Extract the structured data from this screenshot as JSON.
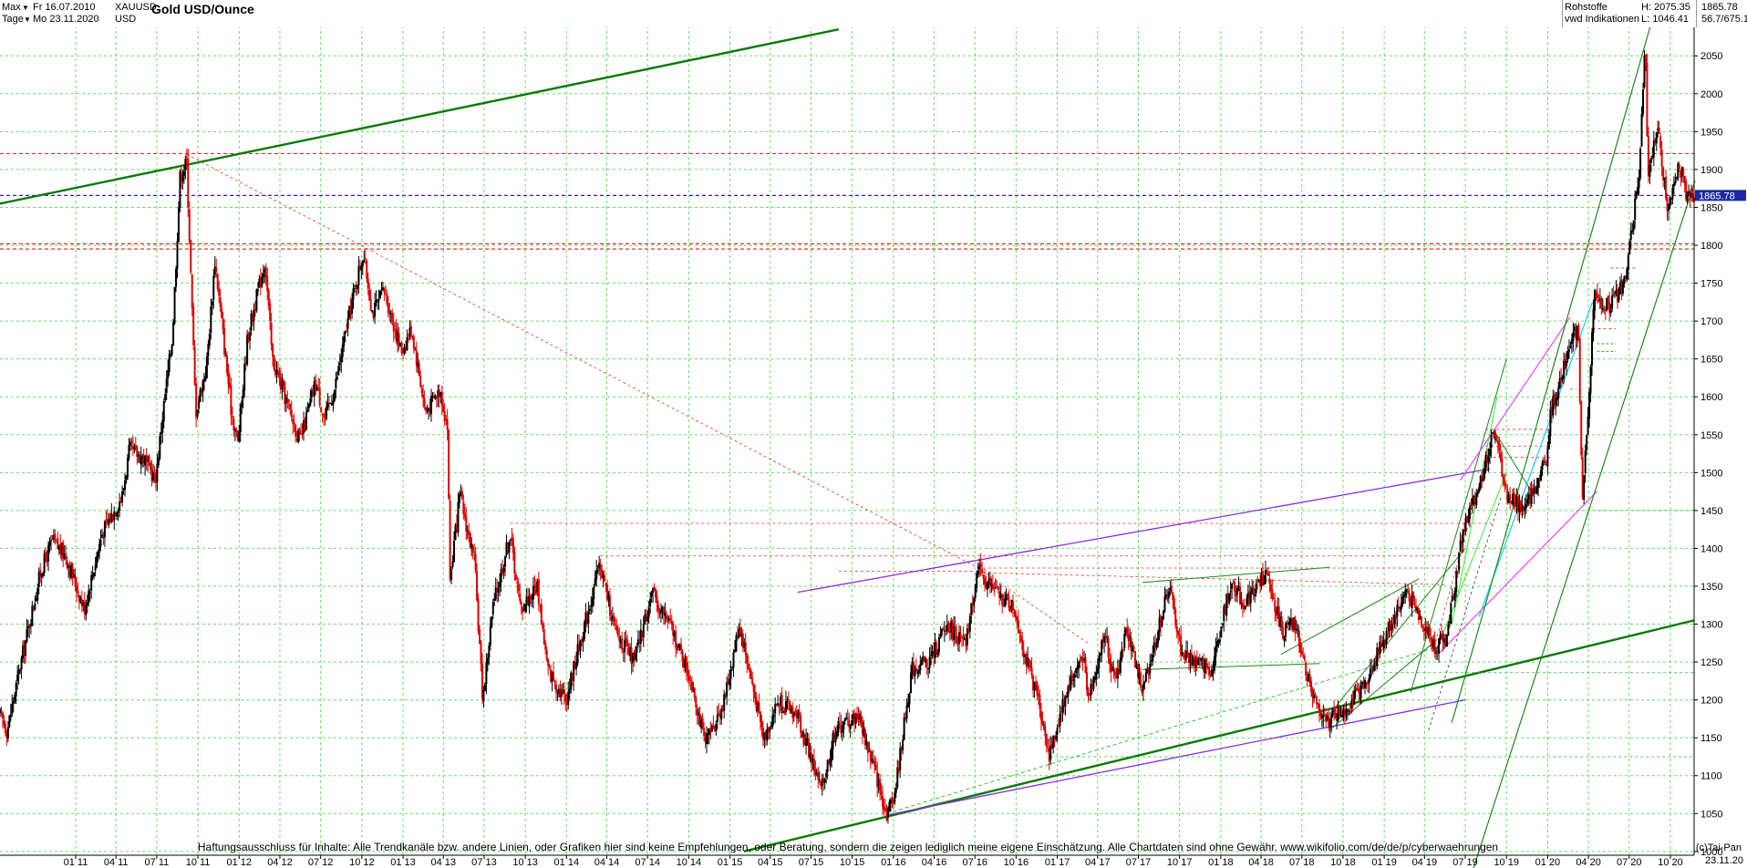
{
  "header": {
    "range_label": "Max",
    "interval_label": "Tage",
    "from_date": "Fr 16.07.2010",
    "to_date": "Mo 23.11.2020",
    "symbol": "XAUUSD",
    "currency": "USD",
    "title": "Gold USD/Ounce",
    "category": "Rohstoffe",
    "source": "vwd Indikationen",
    "high": "H: 2075.35",
    "low": "L: 1046.41",
    "last": "1865.78",
    "change": "56.7/675.1"
  },
  "footer": {
    "disclaimer": "Haftungsausschluss für Inhalte: Alle Trendkanäle bzw. andere Linien, oder Grafiken hier sind keine Empfehlungen, oder Beratung, sondern die zeigen lediglich meine eigene Einschätzung. Alle Chartdaten sind ohne Gewähr.  www.wikifolio.com/de/de/p/cyberwaehrungen",
    "copyright": "(c)Tai-Pan",
    "last_date": "23.11.20"
  },
  "colors": {
    "candle_up": "#000000",
    "candle_down": "#e00000",
    "grid": "#66dd66",
    "trend_green": "#1a8a1a",
    "trend_purple": "#8a2be2",
    "trend_magenta": "#ee44ee",
    "trend_cyan": "#22ccff",
    "level_red": "#e03030",
    "level_blue": "#2222dd",
    "last_badge": "#1a2aa0"
  },
  "chart_data": {
    "type": "candlestick",
    "title": "Gold USD/Ounce",
    "ylim": [
      995,
      2090
    ],
    "y_ticks": [
      1000,
      1050,
      1100,
      1150,
      1200,
      1250,
      1300,
      1350,
      1400,
      1450,
      1500,
      1550,
      1600,
      1650,
      1700,
      1750,
      1800,
      1850,
      1900,
      1950,
      2000,
      2050
    ],
    "x_ticks": [
      "01 11",
      "04 11",
      "07 11",
      "10 11",
      "01 12",
      "04 12",
      "07 12",
      "10 12",
      "01 13",
      "04 13",
      "07 13",
      "10 13",
      "01 14",
      "04 14",
      "07 14",
      "10 14",
      "01 15",
      "04 15",
      "07 15",
      "10 15",
      "01 16",
      "04 16",
      "07 16",
      "10 16",
      "01 17",
      "04 17",
      "07 17",
      "10 17",
      "01 18",
      "04 18",
      "07 18",
      "10 18",
      "01 19",
      "04 19",
      "07 19",
      "10 19",
      "01 20",
      "04 20",
      "07 20",
      "10 20"
    ],
    "x_range": [
      "2010-07-16",
      "2020-11-23"
    ],
    "price_path": [
      [
        "2010-07-16",
        1180
      ],
      [
        "2010-08-01",
        1160
      ],
      [
        "2010-09-01",
        1250
      ],
      [
        "2010-10-15",
        1370
      ],
      [
        "2010-11-10",
        1410
      ],
      [
        "2010-12-10",
        1390
      ],
      [
        "2011-01-20",
        1320
      ],
      [
        "2011-03-01",
        1420
      ],
      [
        "2011-04-15",
        1470
      ],
      [
        "2011-05-01",
        1530
      ],
      [
        "2011-06-01",
        1520
      ],
      [
        "2011-06-28",
        1490
      ],
      [
        "2011-07-15",
        1580
      ],
      [
        "2011-08-05",
        1680
      ],
      [
        "2011-08-22",
        1890
      ],
      [
        "2011-09-06",
        1910
      ],
      [
        "2011-09-26",
        1580
      ],
      [
        "2011-10-20",
        1640
      ],
      [
        "2011-11-08",
        1780
      ],
      [
        "2011-12-15",
        1580
      ],
      [
        "2011-12-29",
        1540
      ],
      [
        "2012-01-20",
        1680
      ],
      [
        "2012-02-28",
        1780
      ],
      [
        "2012-03-15",
        1650
      ],
      [
        "2012-05-16",
        1540
      ],
      [
        "2012-06-20",
        1620
      ],
      [
        "2012-07-10",
        1570
      ],
      [
        "2012-08-01",
        1610
      ],
      [
        "2012-09-10",
        1730
      ],
      [
        "2012-10-04",
        1790
      ],
      [
        "2012-10-25",
        1710
      ],
      [
        "2012-11-20",
        1740
      ],
      [
        "2012-12-28",
        1660
      ],
      [
        "2013-01-20",
        1690
      ],
      [
        "2013-02-20",
        1580
      ],
      [
        "2013-03-25",
        1610
      ],
      [
        "2013-04-10",
        1560
      ],
      [
        "2013-04-16",
        1360
      ],
      [
        "2013-05-08",
        1470
      ],
      [
        "2013-06-10",
        1380
      ],
      [
        "2013-06-28",
        1200
      ],
      [
        "2013-07-20",
        1320
      ],
      [
        "2013-08-28",
        1420
      ],
      [
        "2013-09-20",
        1320
      ],
      [
        "2013-10-28",
        1350
      ],
      [
        "2013-11-20",
        1240
      ],
      [
        "2013-12-31",
        1200
      ],
      [
        "2014-01-20",
        1250
      ],
      [
        "2014-03-17",
        1380
      ],
      [
        "2014-04-20",
        1290
      ],
      [
        "2014-06-01",
        1250
      ],
      [
        "2014-07-10",
        1340
      ],
      [
        "2014-08-20",
        1300
      ],
      [
        "2014-10-10",
        1220
      ],
      [
        "2014-11-06",
        1140
      ],
      [
        "2014-12-20",
        1200
      ],
      [
        "2015-01-22",
        1300
      ],
      [
        "2015-03-17",
        1150
      ],
      [
        "2015-04-20",
        1200
      ],
      [
        "2015-06-01",
        1180
      ],
      [
        "2015-07-24",
        1080
      ],
      [
        "2015-08-24",
        1160
      ],
      [
        "2015-10-15",
        1180
      ],
      [
        "2015-12-17",
        1050
      ],
      [
        "2016-01-05",
        1080
      ],
      [
        "2016-02-11",
        1240
      ],
      [
        "2016-03-20",
        1250
      ],
      [
        "2016-05-02",
        1300
      ],
      [
        "2016-06-10",
        1270
      ],
      [
        "2016-07-06",
        1370
      ],
      [
        "2016-08-20",
        1340
      ],
      [
        "2016-09-28",
        1320
      ],
      [
        "2016-10-20",
        1260
      ],
      [
        "2016-11-20",
        1200
      ],
      [
        "2016-12-15",
        1125
      ],
      [
        "2017-01-20",
        1210
      ],
      [
        "2017-02-27",
        1260
      ],
      [
        "2017-03-10",
        1200
      ],
      [
        "2017-04-18",
        1290
      ],
      [
        "2017-05-09",
        1220
      ],
      [
        "2017-06-06",
        1295
      ],
      [
        "2017-07-10",
        1210
      ],
      [
        "2017-09-08",
        1350
      ],
      [
        "2017-10-06",
        1260
      ],
      [
        "2017-12-12",
        1240
      ],
      [
        "2018-01-25",
        1360
      ],
      [
        "2018-02-20",
        1325
      ],
      [
        "2018-04-11",
        1365
      ],
      [
        "2018-05-20",
        1290
      ],
      [
        "2018-06-15",
        1300
      ],
      [
        "2018-07-20",
        1220
      ],
      [
        "2018-08-16",
        1170
      ],
      [
        "2018-10-10",
        1190
      ],
      [
        "2018-11-15",
        1215
      ],
      [
        "2018-12-31",
        1280
      ],
      [
        "2019-02-20",
        1345
      ],
      [
        "2019-04-23",
        1270
      ],
      [
        "2019-05-20",
        1280
      ],
      [
        "2019-06-25",
        1420
      ],
      [
        "2019-08-10",
        1500
      ],
      [
        "2019-09-04",
        1555
      ],
      [
        "2019-10-01",
        1470
      ],
      [
        "2019-11-12",
        1450
      ],
      [
        "2019-12-30",
        1520
      ],
      [
        "2020-01-08",
        1580
      ],
      [
        "2020-02-24",
        1680
      ],
      [
        "2020-03-09",
        1690
      ],
      [
        "2020-03-19",
        1460
      ],
      [
        "2020-04-14",
        1730
      ],
      [
        "2020-05-20",
        1720
      ],
      [
        "2020-06-20",
        1750
      ],
      [
        "2020-07-24",
        1900
      ],
      [
        "2020-08-06",
        2070
      ],
      [
        "2020-08-12",
        1880
      ],
      [
        "2020-09-01",
        1960
      ],
      [
        "2020-09-24",
        1850
      ],
      [
        "2020-10-20",
        1910
      ],
      [
        "2020-11-09",
        1860
      ],
      [
        "2020-11-23",
        1865
      ]
    ],
    "horizontal_levels": [
      {
        "value": 1921,
        "color": "red"
      },
      {
        "value": 1865.78,
        "color": "blue"
      },
      {
        "value": 1802,
        "color": "red"
      },
      {
        "value": 1795,
        "color": "red"
      }
    ],
    "last_price": 1865.78,
    "high": 2075.35,
    "low": 1046.41,
    "grid": true
  }
}
